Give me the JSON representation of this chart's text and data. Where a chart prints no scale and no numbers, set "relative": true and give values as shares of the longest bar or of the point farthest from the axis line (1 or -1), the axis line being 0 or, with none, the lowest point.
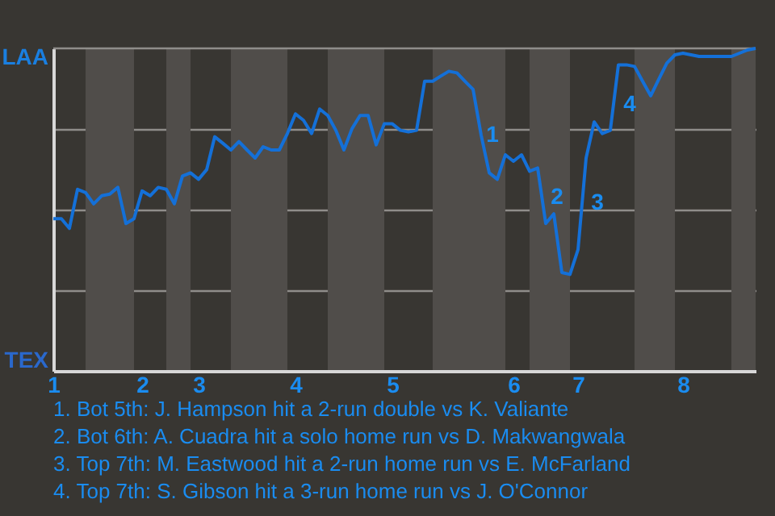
{
  "chart_data": {
    "type": "line",
    "relative": true,
    "categories": [
      "1",
      null,
      null,
      null,
      null,
      null,
      null,
      null,
      null,
      null,
      null,
      "2",
      null,
      null,
      null,
      null,
      null,
      null,
      "3",
      null,
      null,
      null,
      null,
      null,
      null,
      null,
      null,
      null,
      null,
      null,
      "4",
      null,
      null,
      null,
      null,
      null,
      null,
      null,
      null,
      null,
      null,
      null,
      "5",
      null,
      null,
      null,
      null,
      null,
      null,
      null,
      null,
      null,
      null,
      null,
      null,
      null,
      null,
      "6",
      null,
      null,
      null,
      null,
      null,
      null,
      null,
      "7",
      null,
      null,
      null,
      null,
      null,
      null,
      null,
      null,
      null,
      null,
      null,
      null,
      "8",
      null,
      null,
      null,
      null,
      null,
      null,
      null,
      null,
      null
    ],
    "series": [
      {
        "color": "#1470d8",
        "values": [
          0.472,
          0.472,
          0.442,
          0.563,
          0.553,
          0.518,
          0.543,
          0.548,
          0.569,
          0.457,
          0.472,
          0.558,
          0.543,
          0.569,
          0.563,
          0.518,
          0.604,
          0.614,
          0.594,
          0.624,
          0.726,
          0.706,
          0.685,
          0.711,
          0.685,
          0.66,
          0.695,
          0.685,
          0.685,
          0.736,
          0.797,
          0.777,
          0.736,
          0.812,
          0.792,
          0.746,
          0.685,
          0.751,
          0.792,
          0.792,
          0.701,
          0.766,
          0.766,
          0.746,
          0.741,
          0.746,
          0.898,
          0.898,
          0.914,
          0.929,
          0.924,
          0.898,
          0.873,
          0.731,
          0.614,
          0.594,
          0.67,
          0.65,
          0.67,
          0.619,
          0.629,
          0.457,
          0.487,
          0.305,
          0.299,
          0.376,
          0.66,
          0.772,
          0.736,
          0.746,
          0.949,
          0.949,
          0.944,
          0.898,
          0.853,
          0.904,
          0.954,
          0.98,
          0.985,
          0.98,
          0.975,
          0.975,
          0.975,
          0.975,
          0.975,
          0.985,
          0.995,
          1
        ]
      }
    ],
    "grid": "y",
    "annotations": [
      "LAA",
      "TEX",
      "1",
      "2",
      "3",
      "4",
      "1. Bot 5th: J. Hampson hit a 2-run double vs K. Valiante",
      "2. Bot 6th: A. Cuadra hit a solo home run vs D. Makwangwala",
      "3. Top 7th: M. Eastwood hit a 2-run home run vs E. McFarland",
      "4. Top 7th: S. Gibson hit a 3-run home run vs J. O'Connor"
    ]
  }
}
